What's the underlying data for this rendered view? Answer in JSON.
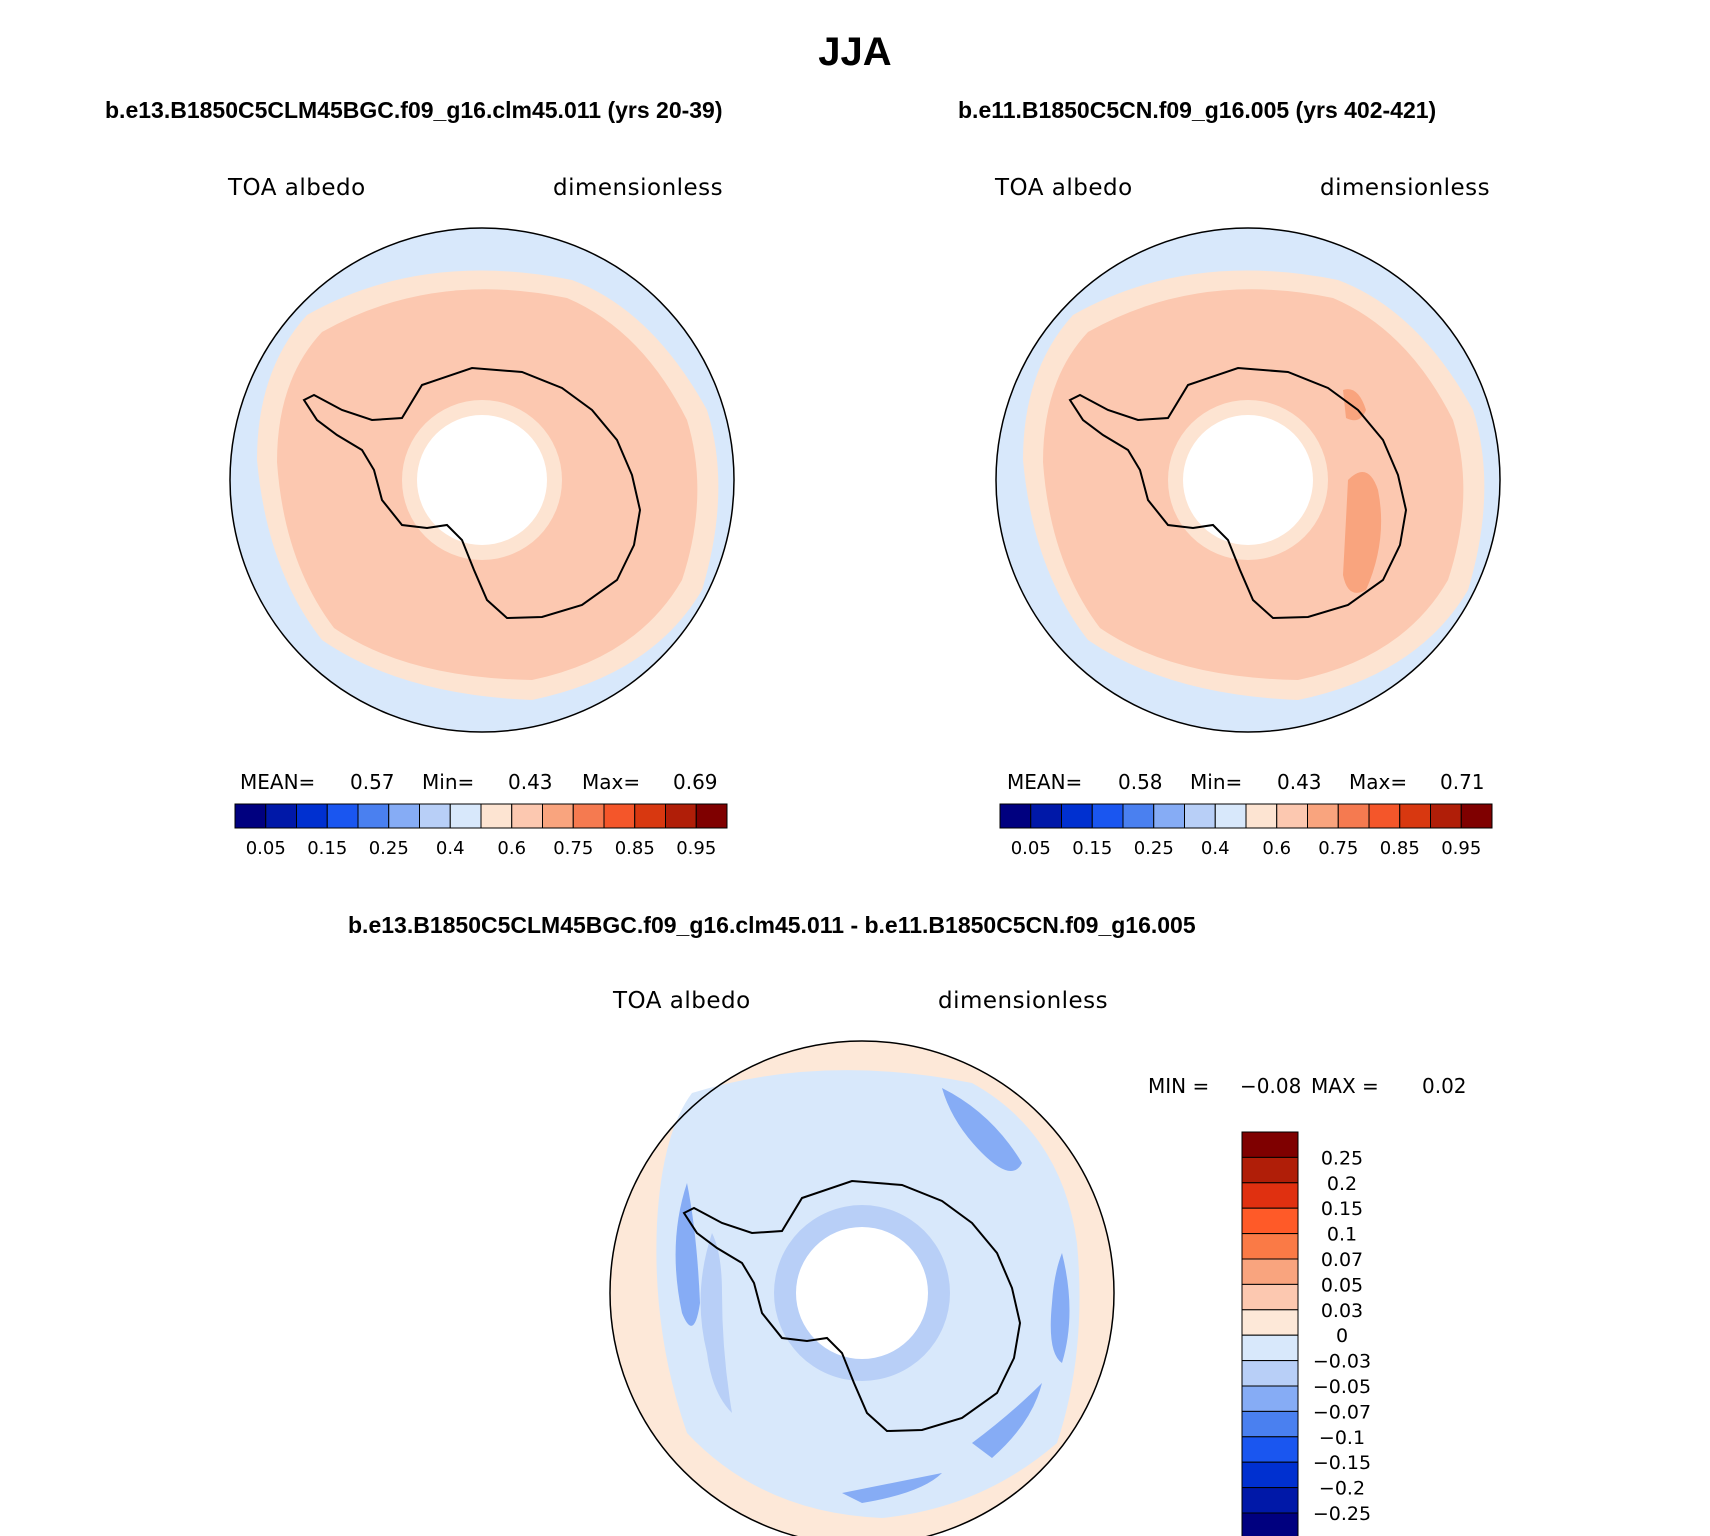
{
  "title": "JJA",
  "panels": [
    {
      "case_title": "b.e13.B1850C5CLM45BGC.f09_g16.clm45.011 (yrs 20-39)",
      "variable": "TOA albedo",
      "units": "dimensionless",
      "stats": {
        "mean_label": "MEAN=",
        "mean": "0.57",
        "min_label": "Min=",
        "min": "0.43",
        "max_label": "Max=",
        "max": "0.69"
      },
      "colorbar_labels": [
        "0.05",
        "0.15",
        "0.25",
        "0.4",
        "0.6",
        "0.75",
        "0.85",
        "0.95"
      ]
    },
    {
      "case_title": "b.e11.B1850C5CN.f09_g16.005 (yrs 402-421)",
      "variable": "TOA albedo",
      "units": "dimensionless",
      "stats": {
        "mean_label": "MEAN=",
        "mean": "0.58",
        "min_label": "Min=",
        "min": "0.43",
        "max_label": "Max=",
        "max": "0.71"
      },
      "colorbar_labels": [
        "0.05",
        "0.15",
        "0.25",
        "0.4",
        "0.6",
        "0.75",
        "0.85",
        "0.95"
      ]
    }
  ],
  "diff": {
    "case_title": "b.e13.B1850C5CLM45BGC.f09_g16.clm45.011 - b.e11.B1850C5CN.f09_g16.005",
    "variable": "TOA albedo",
    "units": "dimensionless",
    "stats": {
      "min_label": "MIN =",
      "min": "−0.08",
      "max_label": "MAX =",
      "max": "0.02"
    },
    "colorbar_labels": [
      "0.25",
      "0.2",
      "0.15",
      "0.1",
      "0.07",
      "0.05",
      "0.03",
      "0",
      "−0.03",
      "−0.05",
      "−0.07",
      "−0.1",
      "−0.15",
      "−0.2",
      "−0.25"
    ]
  },
  "colors": {
    "abs_scale": [
      "#00007f",
      "#0018a8",
      "#0030d0",
      "#1a56f0",
      "#4a80f0",
      "#86acf5",
      "#b8cff7",
      "#d8e8fb",
      "#fde4d2",
      "#fcc8b0",
      "#f9a47e",
      "#f57a50",
      "#f4562a",
      "#d83810",
      "#b01e08",
      "#7f0000"
    ],
    "diff_scale": [
      "#7f0000",
      "#b01e08",
      "#e03010",
      "#ff5a28",
      "#fa7a46",
      "#f9a47e",
      "#fcc8b0",
      "#fde8d8",
      "#d8e8fb",
      "#b8cff7",
      "#86acf5",
      "#4a80f0",
      "#1a56f0",
      "#0030d0",
      "#0018a8",
      "#00007f"
    ]
  },
  "chart_data": [
    {
      "type": "heatmap",
      "projection": "polar stereographic, south pole",
      "title": "b.e13.B1850C5CLM45BGC.f09_g16.clm45.011 (yrs 20-39)",
      "variable": "TOA albedo",
      "units": "dimensionless",
      "mean": 0.57,
      "min": 0.43,
      "max": 0.69,
      "contour_levels": [
        0.05,
        0.1,
        0.15,
        0.2,
        0.25,
        0.3,
        0.4,
        0.5,
        0.6,
        0.7,
        0.75,
        0.8,
        0.85,
        0.9,
        0.95
      ]
    },
    {
      "type": "heatmap",
      "projection": "polar stereographic, south pole",
      "title": "b.e11.B1850C5CN.f09_g16.005 (yrs 402-421)",
      "variable": "TOA albedo",
      "units": "dimensionless",
      "mean": 0.58,
      "min": 0.43,
      "max": 0.71,
      "contour_levels": [
        0.05,
        0.1,
        0.15,
        0.2,
        0.25,
        0.3,
        0.4,
        0.5,
        0.6,
        0.7,
        0.75,
        0.8,
        0.85,
        0.9,
        0.95
      ]
    },
    {
      "type": "heatmap",
      "projection": "polar stereographic, south pole",
      "title": "b.e13.B1850C5CLM45BGC.f09_g16.clm45.011 - b.e11.B1850C5CN.f09_g16.005",
      "variable": "TOA albedo",
      "units": "dimensionless",
      "min": -0.08,
      "max": 0.02,
      "contour_levels": [
        -0.25,
        -0.2,
        -0.15,
        -0.1,
        -0.07,
        -0.05,
        -0.03,
        0,
        0.03,
        0.05,
        0.07,
        0.1,
        0.15,
        0.2,
        0.25
      ]
    }
  ]
}
